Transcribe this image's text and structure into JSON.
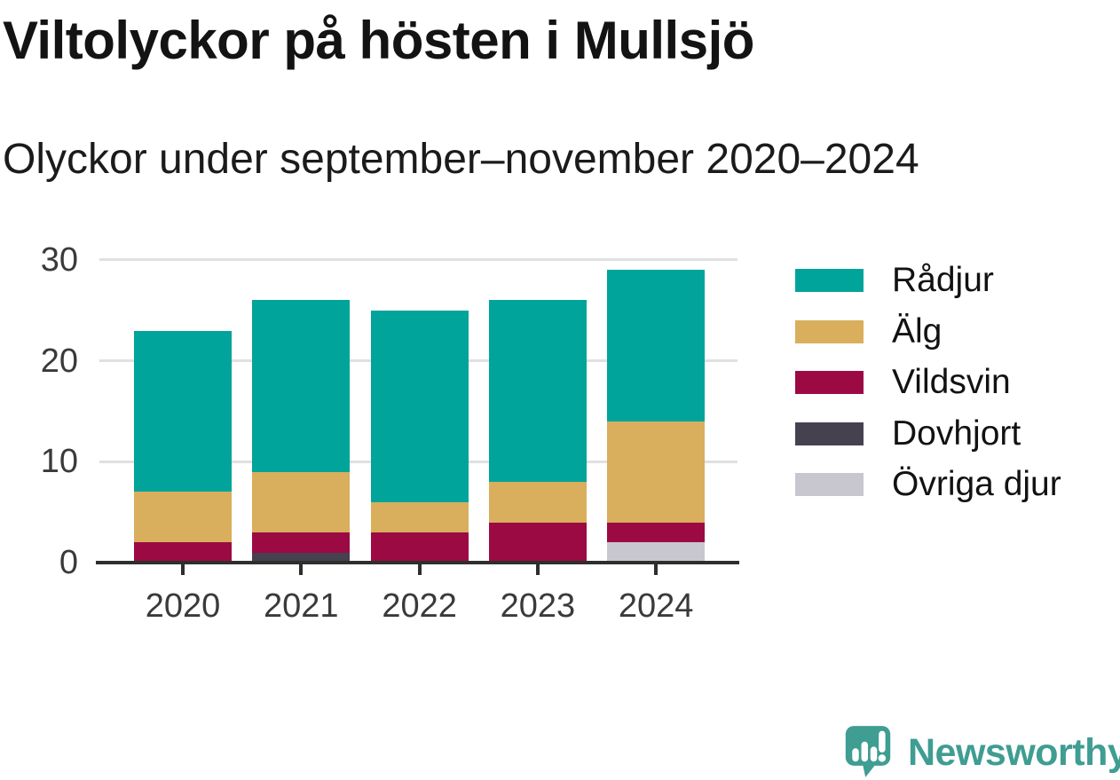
{
  "title": "Viltolyckor på hösten i Mullsjö",
  "subtitle": "Olyckor under september–november 2020–2024",
  "colors": {
    "background": "#ffffff",
    "axis": "#2e2e2e",
    "gridline": "#e0e0e0",
    "tick_label": "#3a3a3a",
    "title_text": "#131313",
    "brand_teal": "#3f9d92"
  },
  "chart_data": {
    "type": "bar",
    "stacked": true,
    "title": "Viltolyckor på hösten i Mullsjö",
    "subtitle": "Olyckor under september–november 2020–2024",
    "categories": [
      "2020",
      "2021",
      "2022",
      "2023",
      "2024"
    ],
    "series": [
      {
        "name": "Rådjur",
        "color": "#00a49b",
        "values": [
          16,
          17,
          19,
          18,
          15
        ]
      },
      {
        "name": "Älg",
        "color": "#d9ae5c",
        "values": [
          5,
          6,
          3,
          4,
          10
        ]
      },
      {
        "name": "Vildsvin",
        "color": "#9c0a43",
        "values": [
          2,
          2,
          3,
          4,
          2
        ]
      },
      {
        "name": "Dovhjort",
        "color": "#45414e",
        "values": [
          0,
          1,
          0,
          0,
          0
        ]
      },
      {
        "name": "Övriga djur",
        "color": "#c8c7cf",
        "values": [
          0,
          0,
          0,
          0,
          2
        ]
      }
    ],
    "totals": [
      23,
      26,
      25,
      26,
      29
    ],
    "stack_order_bottom_to_top": [
      "Övriga djur",
      "Dovhjort",
      "Vildsvin",
      "Älg",
      "Rådjur"
    ],
    "xlabel": "",
    "ylabel": "",
    "ylim": [
      0,
      30
    ],
    "yticks": [
      0,
      10,
      20,
      30
    ],
    "grid": "horizontal",
    "legend_position": "right"
  },
  "logo": {
    "text": "Newsworthy"
  }
}
